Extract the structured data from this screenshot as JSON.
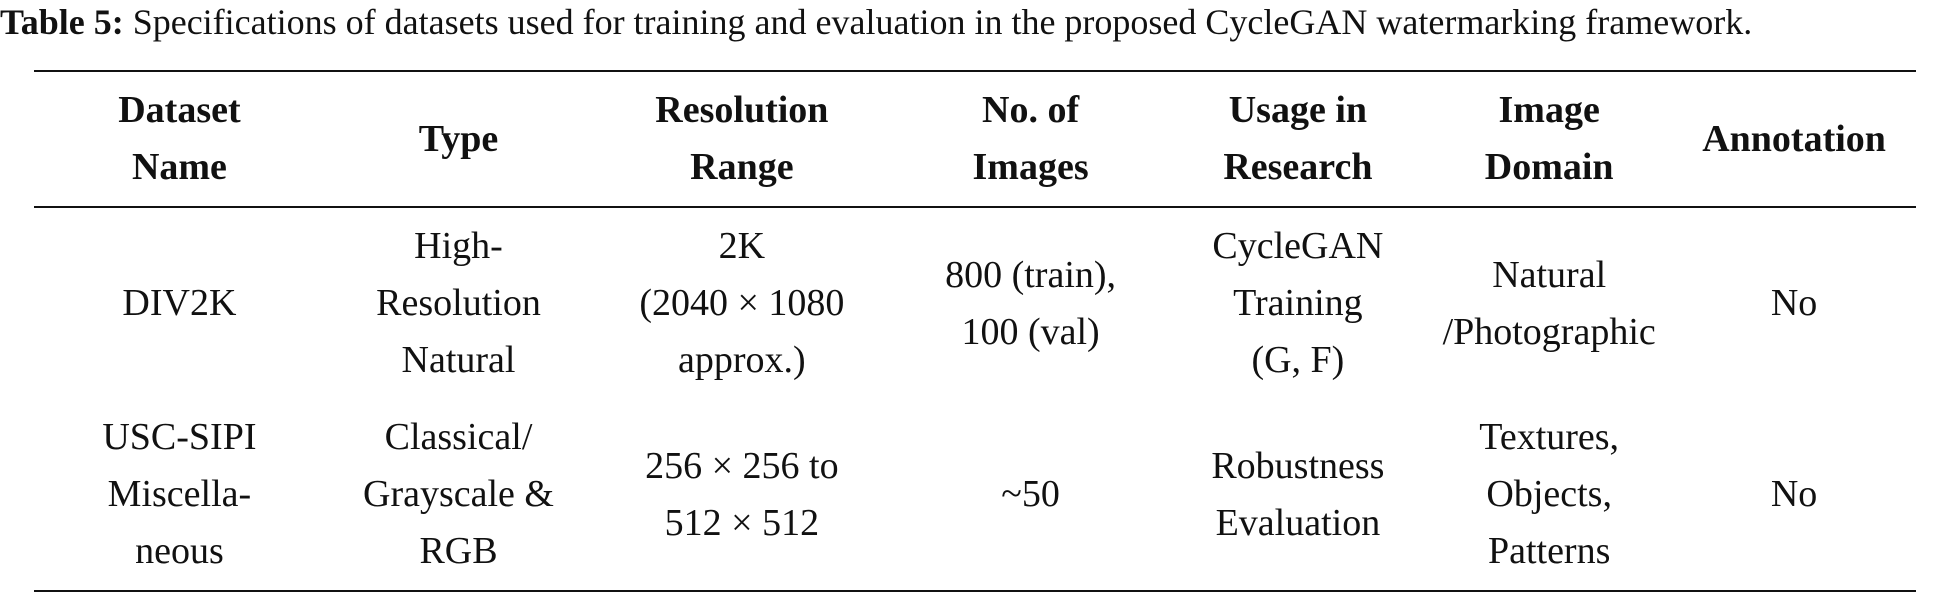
{
  "caption": {
    "label": "Table 5:",
    "text": " Specifications of datasets used for training and evaluation in the proposed CycleGAN watermarking framework."
  },
  "table": {
    "headers": [
      [
        "Dataset",
        "Name"
      ],
      [
        "Type"
      ],
      [
        "Resolution",
        "Range"
      ],
      [
        "No. of",
        "Images"
      ],
      [
        "Usage in",
        "Research"
      ],
      [
        "Image",
        "Domain"
      ],
      [
        "Annotation"
      ]
    ],
    "rows": [
      [
        [
          "DIV2K"
        ],
        [
          "High-",
          "Resolution",
          "Natural"
        ],
        [
          "2K",
          "(2040 × 1080",
          "approx.)"
        ],
        [
          "800 (train),",
          "100 (val)"
        ],
        [
          "CycleGAN",
          "Training",
          "(G, F)"
        ],
        [
          "Natural",
          "/Photographic"
        ],
        [
          "No"
        ]
      ],
      [
        [
          "USC-SIPI",
          "Miscella-",
          "neous"
        ],
        [
          "Classical/",
          "Grayscale &",
          "RGB"
        ],
        [
          "256 × 256 to",
          "512 × 512"
        ],
        [
          "~50"
        ],
        [
          "Robustness",
          "Evaluation"
        ],
        [
          "Textures,",
          "Objects,",
          "Patterns"
        ],
        [
          "No"
        ]
      ]
    ]
  }
}
